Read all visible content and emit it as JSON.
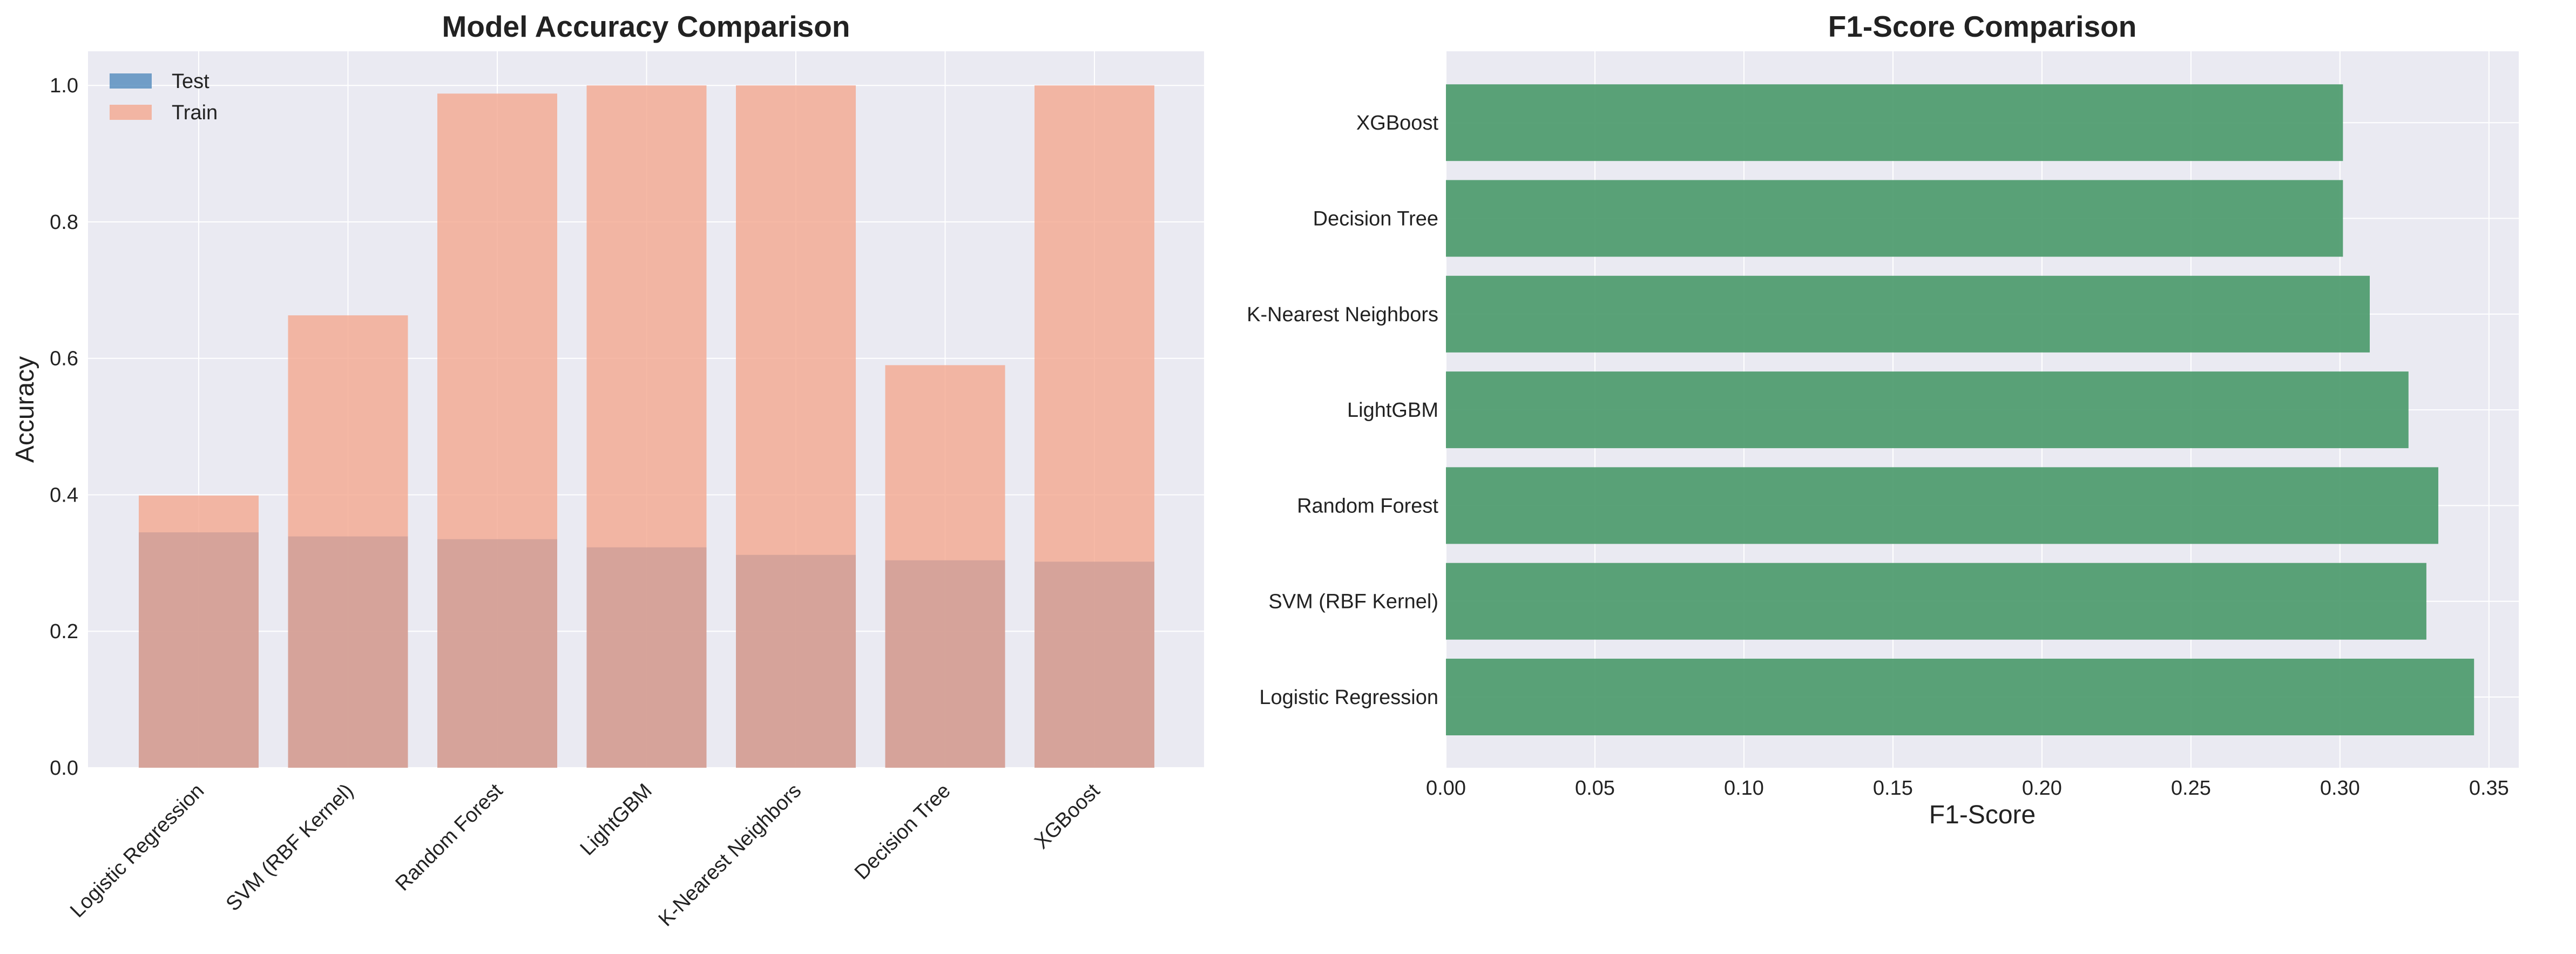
{
  "colors": {
    "panel_bg": "#eaeaf2",
    "grid": "#ffffff",
    "test": "#5b8fc0",
    "train": "#f4a58d",
    "overlap": "#b08986",
    "f1": "#4c9a6c"
  },
  "chart_data": [
    {
      "type": "bar",
      "title": "Model Accuracy Comparison",
      "xlabel": "",
      "ylabel": "Accuracy",
      "ylim": [
        0,
        1.05
      ],
      "yticks": [
        "0.0",
        "0.2",
        "0.4",
        "0.6",
        "0.8",
        "1.0"
      ],
      "ytick_values": [
        0,
        0.2,
        0.4,
        0.6,
        0.8,
        1.0
      ],
      "categories": [
        "Logistic Regression",
        "SVM (RBF Kernel)",
        "Random Forest",
        "LightGBM",
        "K-Nearest Neighbors",
        "Decision Tree",
        "XGBoost"
      ],
      "series": [
        {
          "name": "Test",
          "values": [
            0.345,
            0.339,
            0.335,
            0.323,
            0.312,
            0.304,
            0.302
          ]
        },
        {
          "name": "Train",
          "values": [
            0.399,
            0.663,
            0.988,
            1.0,
            1.0,
            0.59,
            1.0
          ]
        }
      ],
      "legend": "top-left",
      "grid": true
    },
    {
      "type": "bar",
      "orientation": "horizontal",
      "title": "F1-Score Comparison",
      "xlabel": "F1-Score",
      "ylabel": "",
      "xlim": [
        0,
        0.36
      ],
      "xticks": [
        "0.00",
        "0.05",
        "0.10",
        "0.15",
        "0.20",
        "0.25",
        "0.30",
        "0.35"
      ],
      "xtick_values": [
        0,
        0.05,
        0.1,
        0.15,
        0.2,
        0.25,
        0.3,
        0.35
      ],
      "categories": [
        "Logistic Regression",
        "SVM (RBF Kernel)",
        "Random Forest",
        "LightGBM",
        "K-Nearest Neighbors",
        "Decision Tree",
        "XGBoost"
      ],
      "values": [
        0.345,
        0.329,
        0.333,
        0.323,
        0.31,
        0.301,
        0.301
      ],
      "grid": true
    }
  ]
}
